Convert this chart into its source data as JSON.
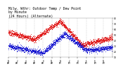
{
  "title": "Milw. Wthr: Outdoor Temp / Dew Point\nby Minute\n(24 Hours) (Alternate)",
  "title_fontsize": 3.5,
  "background_color": "#ffffff",
  "grid_color": "#aaaaaa",
  "temp_color": "#dd0000",
  "dew_color": "#0000cc",
  "ylim": [
    10,
    80
  ],
  "ytick_values": [
    10,
    20,
    30,
    40,
    50,
    60,
    70,
    80
  ],
  "n_points": 1440
}
